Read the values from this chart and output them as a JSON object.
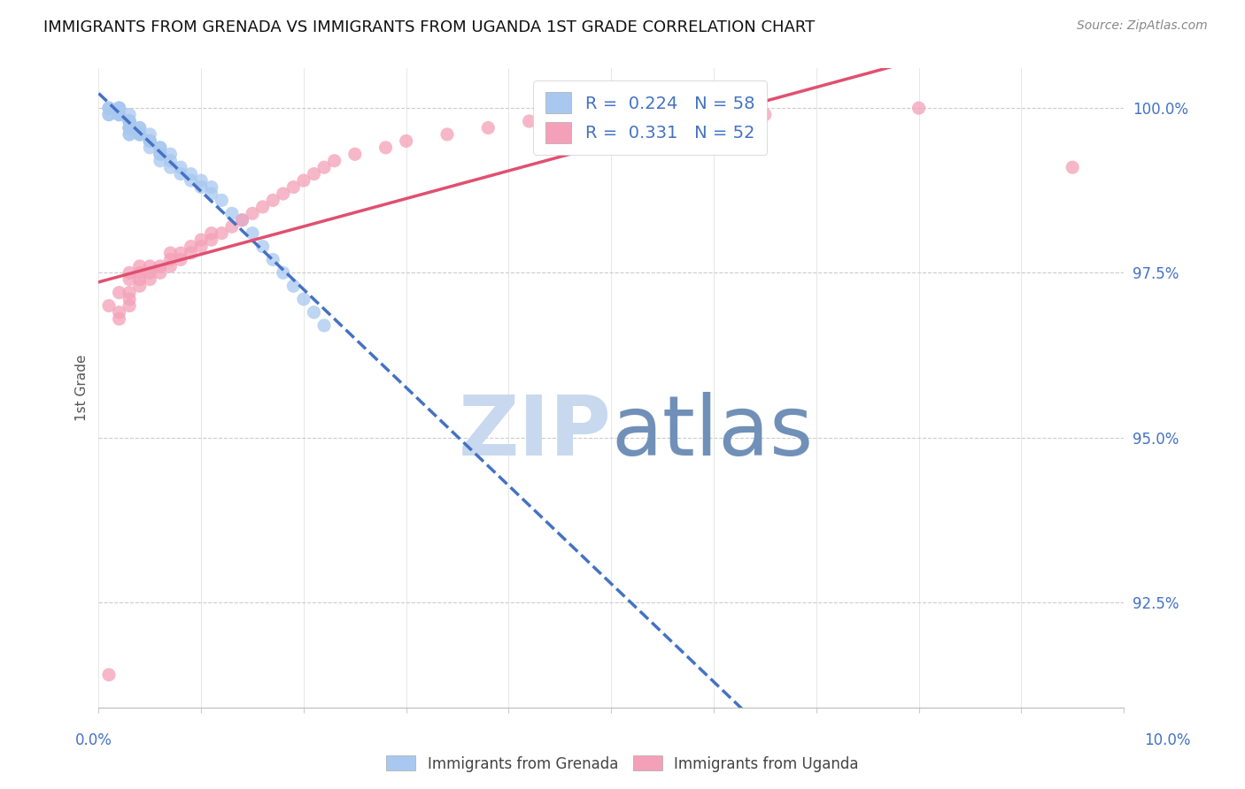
{
  "title": "IMMIGRANTS FROM GRENADA VS IMMIGRANTS FROM UGANDA 1ST GRADE CORRELATION CHART",
  "source": "Source: ZipAtlas.com",
  "ylabel": "1st Grade",
  "ytick_labels": [
    "100.0%",
    "97.5%",
    "95.0%",
    "92.5%"
  ],
  "ytick_values": [
    1.0,
    0.975,
    0.95,
    0.925
  ],
  "xlim": [
    0.0,
    0.1
  ],
  "ylim": [
    0.909,
    1.006
  ],
  "r_grenada": 0.224,
  "n_grenada": 58,
  "r_uganda": 0.331,
  "n_uganda": 52,
  "color_grenada": "#A8C8F0",
  "color_uganda": "#F4A0B8",
  "color_grenada_line": "#4472C4",
  "color_uganda_line": "#E05070",
  "color_axis_labels": "#4472C4",
  "color_title": "#111111",
  "watermark_zip": "#C8D8EE",
  "watermark_atlas": "#7090B8",
  "grenada_x": [
    0.001,
    0.001,
    0.001,
    0.001,
    0.002,
    0.002,
    0.002,
    0.002,
    0.002,
    0.002,
    0.003,
    0.003,
    0.003,
    0.003,
    0.003,
    0.003,
    0.003,
    0.003,
    0.003,
    0.003,
    0.003,
    0.004,
    0.004,
    0.004,
    0.004,
    0.004,
    0.005,
    0.005,
    0.005,
    0.005,
    0.005,
    0.006,
    0.006,
    0.006,
    0.006,
    0.006,
    0.007,
    0.007,
    0.007,
    0.008,
    0.008,
    0.009,
    0.009,
    0.01,
    0.01,
    0.011,
    0.011,
    0.012,
    0.013,
    0.014,
    0.015,
    0.016,
    0.017,
    0.018,
    0.019,
    0.02,
    0.021,
    0.022
  ],
  "grenada_y": [
    0.999,
    1.0,
    0.999,
    1.0,
    0.999,
    1.0,
    0.999,
    1.0,
    0.999,
    1.0,
    0.998,
    0.999,
    0.998,
    0.997,
    0.998,
    0.997,
    0.998,
    0.997,
    0.996,
    0.997,
    0.996,
    0.996,
    0.996,
    0.997,
    0.997,
    0.996,
    0.995,
    0.996,
    0.995,
    0.994,
    0.995,
    0.993,
    0.994,
    0.993,
    0.992,
    0.994,
    0.992,
    0.991,
    0.993,
    0.99,
    0.991,
    0.989,
    0.99,
    0.988,
    0.989,
    0.987,
    0.988,
    0.986,
    0.984,
    0.983,
    0.981,
    0.979,
    0.977,
    0.975,
    0.973,
    0.971,
    0.969,
    0.967
  ],
  "uganda_x": [
    0.001,
    0.001,
    0.002,
    0.002,
    0.002,
    0.003,
    0.003,
    0.003,
    0.003,
    0.003,
    0.004,
    0.004,
    0.004,
    0.004,
    0.005,
    0.005,
    0.005,
    0.006,
    0.006,
    0.007,
    0.007,
    0.007,
    0.008,
    0.008,
    0.009,
    0.009,
    0.01,
    0.01,
    0.011,
    0.011,
    0.012,
    0.013,
    0.014,
    0.015,
    0.016,
    0.017,
    0.018,
    0.019,
    0.02,
    0.021,
    0.022,
    0.023,
    0.025,
    0.028,
    0.03,
    0.034,
    0.038,
    0.042,
    0.055,
    0.065,
    0.08,
    0.095
  ],
  "uganda_y": [
    0.914,
    0.97,
    0.968,
    0.969,
    0.972,
    0.97,
    0.971,
    0.972,
    0.974,
    0.975,
    0.973,
    0.974,
    0.975,
    0.976,
    0.974,
    0.975,
    0.976,
    0.975,
    0.976,
    0.976,
    0.977,
    0.978,
    0.977,
    0.978,
    0.978,
    0.979,
    0.979,
    0.98,
    0.98,
    0.981,
    0.981,
    0.982,
    0.983,
    0.984,
    0.985,
    0.986,
    0.987,
    0.988,
    0.989,
    0.99,
    0.991,
    0.992,
    0.993,
    0.994,
    0.995,
    0.996,
    0.997,
    0.998,
    0.999,
    0.999,
    1.0,
    0.991
  ]
}
